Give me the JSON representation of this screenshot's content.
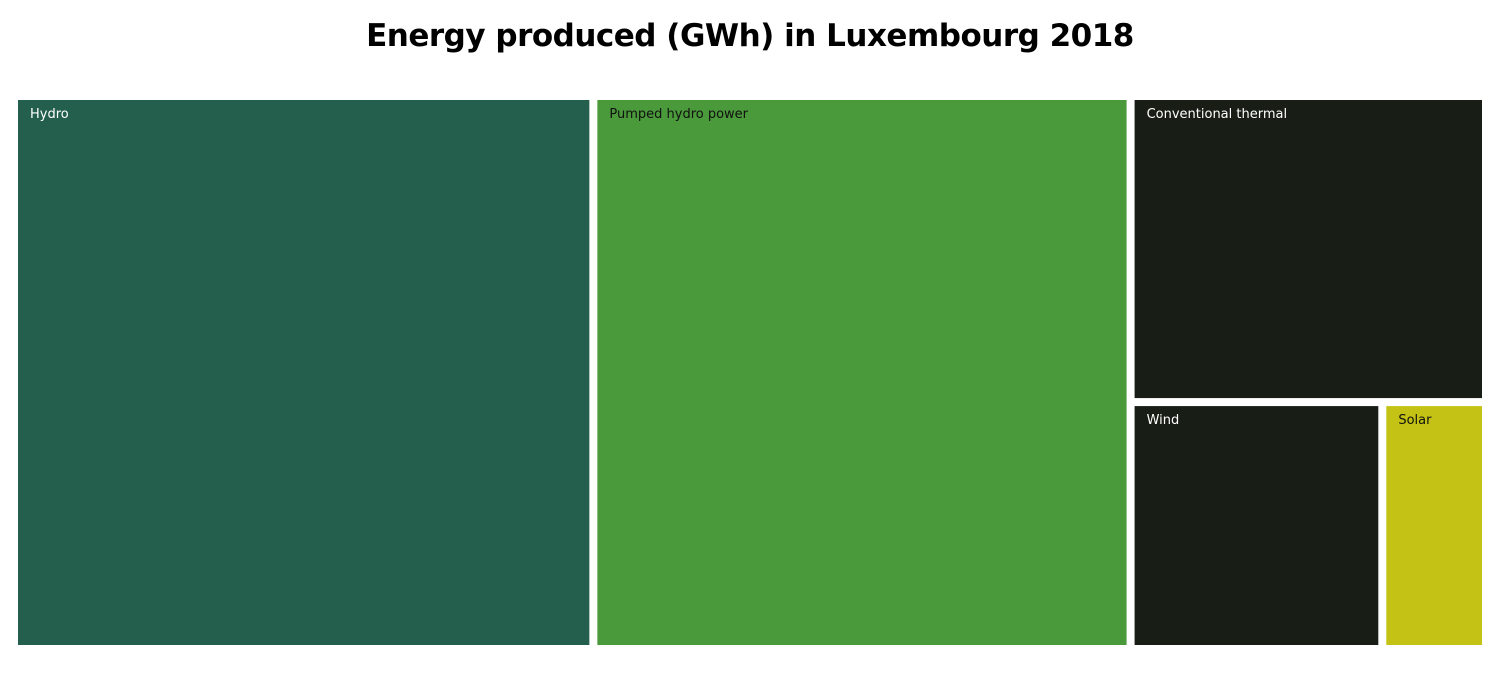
{
  "chart_data": {
    "type": "treemap",
    "title": "Energy produced (GWh) in Luxembourg 2018",
    "unit": "GWh",
    "items": [
      {
        "name": "Hydro",
        "value": 1282,
        "color": "#235f4c",
        "label_color": "#ffffff"
      },
      {
        "name": "Pumped hydro power",
        "value": 1197,
        "color": "#4a993a",
        "label_color": "#111111"
      },
      {
        "name": "Conventional thermal",
        "value": 434,
        "color": "#181e16",
        "label_color": "#ffffff"
      },
      {
        "name": "Wind",
        "value": 250,
        "color": "#181e16",
        "label_color": "#ffffff"
      },
      {
        "name": "Solar",
        "value": 99,
        "color": "#c4c315",
        "label_color": "#111111"
      }
    ]
  }
}
